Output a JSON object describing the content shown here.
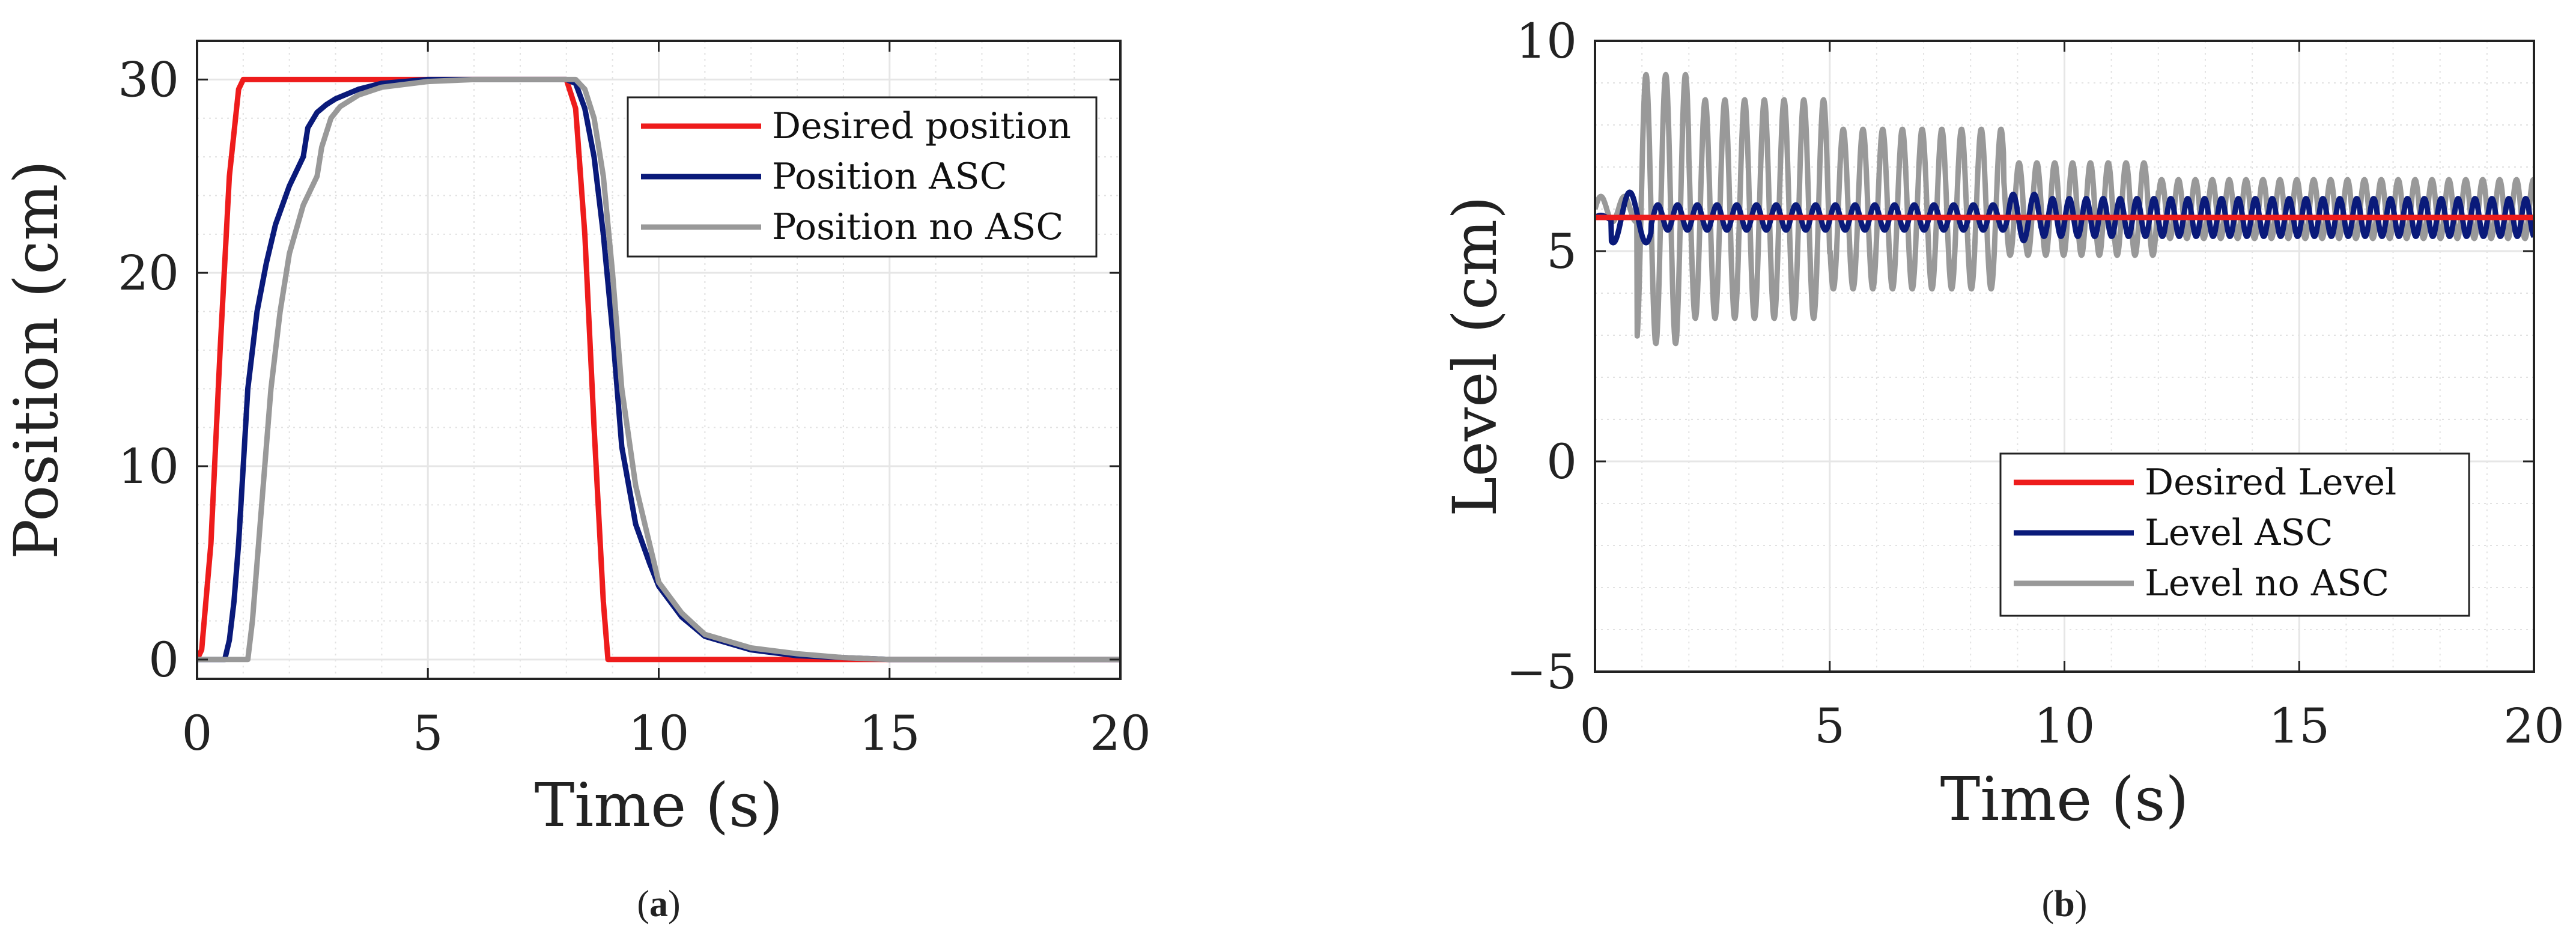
{
  "chart_data": [
    {
      "type": "line",
      "caption": "a",
      "xlabel": "Time (s)",
      "ylabel": "Position (cm)",
      "xlim": [
        0,
        20
      ],
      "ylim": [
        -1,
        32
      ],
      "xticks": [
        0,
        5,
        10,
        15,
        20
      ],
      "yticks": [
        0,
        10,
        20,
        30
      ],
      "xtick_labels": [
        "0",
        "5",
        "10",
        "15",
        "20"
      ],
      "ytick_labels": [
        "0",
        "10",
        "20",
        "30"
      ],
      "grid": true,
      "legend_position": "top-right",
      "series": [
        {
          "name": "Desired position",
          "color": "#ee1c1c",
          "x": [
            0,
            0.1,
            0.3,
            0.5,
            0.7,
            0.9,
            1.0,
            8.0,
            8.2,
            8.4,
            8.6,
            8.8,
            8.9,
            20
          ],
          "y": [
            0,
            0.5,
            6,
            16,
            25,
            29.5,
            30,
            30,
            28.5,
            22,
            12,
            3,
            0,
            0
          ]
        },
        {
          "name": "Position ASC",
          "color": "#0a1a7a",
          "x": [
            0,
            0.6,
            0.7,
            0.8,
            0.9,
            1.0,
            1.1,
            1.3,
            1.5,
            1.7,
            2.0,
            2.3,
            2.4,
            2.6,
            2.8,
            3.0,
            3.5,
            4.0,
            5.0,
            6.0,
            8.0,
            8.2,
            8.4,
            8.6,
            8.8,
            9.0,
            9.2,
            9.5,
            9.8,
            10.0,
            10.5,
            11.0,
            12.0,
            13.0,
            14.0,
            15.0,
            20.0
          ],
          "y": [
            0,
            0,
            1,
            3,
            6,
            10,
            14,
            18,
            20.5,
            22.5,
            24.5,
            26,
            27.5,
            28.3,
            28.7,
            29,
            29.5,
            29.8,
            30,
            30,
            30,
            29.8,
            28.5,
            26,
            22,
            17,
            11,
            7,
            5,
            3.8,
            2.2,
            1.2,
            0.5,
            0.2,
            0.1,
            0,
            0
          ]
        },
        {
          "name": "Position no ASC",
          "color": "#999999",
          "x": [
            0,
            1.1,
            1.2,
            1.4,
            1.6,
            1.8,
            2.0,
            2.3,
            2.6,
            2.7,
            2.9,
            3.1,
            3.5,
            4.0,
            5.0,
            6.0,
            8.2,
            8.4,
            8.6,
            8.8,
            9.0,
            9.2,
            9.5,
            9.8,
            10.0,
            10.5,
            11.0,
            12.0,
            13.0,
            14.0,
            15.0,
            20.0
          ],
          "y": [
            0,
            0,
            2,
            8,
            14,
            18,
            21,
            23.5,
            25,
            26.5,
            28,
            28.6,
            29.2,
            29.6,
            29.9,
            30,
            30,
            29.5,
            28,
            25,
            20,
            14,
            9,
            6,
            4,
            2.4,
            1.3,
            0.6,
            0.3,
            0.1,
            0,
            0
          ]
        }
      ]
    },
    {
      "type": "line",
      "caption": "b",
      "xlabel": "Time (s)",
      "ylabel": "Level (cm)",
      "xlim": [
        0,
        20
      ],
      "ylim": [
        -5,
        10
      ],
      "xticks": [
        0,
        5,
        10,
        15,
        20
      ],
      "yticks": [
        -5,
        0,
        5,
        10
      ],
      "xtick_labels": [
        "0",
        "5",
        "10",
        "15",
        "20"
      ],
      "ytick_labels": [
        "−5",
        "0",
        "5",
        "10"
      ],
      "grid": true,
      "legend_position": "bottom-right",
      "series": [
        {
          "name": "Desired Level",
          "color": "#ee1c1c",
          "x": [
            0,
            20
          ],
          "y": [
            5.8,
            5.8
          ]
        },
        {
          "name": "Level ASC",
          "color": "#0a1a7a",
          "oscillation": {
            "mean": 5.8,
            "t_end": 20,
            "segments": [
              {
                "t_start": 0.0,
                "t_end": 0.35,
                "amp": 0.05,
                "period": 0.5
              },
              {
                "t_start": 0.35,
                "t_end": 1.2,
                "amp": 0.6,
                "period": 0.7
              },
              {
                "t_start": 1.2,
                "t_end": 8.8,
                "amp": 0.3,
                "period": 0.42
              },
              {
                "t_start": 8.8,
                "t_end": 9.5,
                "amp": 0.55,
                "period": 0.45
              },
              {
                "t_start": 9.5,
                "t_end": 20.0,
                "amp": 0.45,
                "period": 0.36
              }
            ]
          }
        },
        {
          "name": "Level no ASC",
          "color": "#999999",
          "oscillation": {
            "mean": 6.0,
            "t_end": 20,
            "segments": [
              {
                "t_start": 0.0,
                "t_end": 0.9,
                "amp": 0.3,
                "period": 0.5
              },
              {
                "t_start": 0.9,
                "t_end": 2.0,
                "amp": 3.2,
                "period": 0.42
              },
              {
                "t_start": 2.0,
                "t_end": 5.0,
                "amp": 2.6,
                "period": 0.42
              },
              {
                "t_start": 5.0,
                "t_end": 8.7,
                "amp": 1.9,
                "period": 0.42
              },
              {
                "t_start": 8.7,
                "t_end": 12.0,
                "amp": 1.1,
                "period": 0.38
              },
              {
                "t_start": 12.0,
                "t_end": 20.0,
                "amp": 0.7,
                "period": 0.36
              }
            ]
          }
        }
      ]
    }
  ]
}
